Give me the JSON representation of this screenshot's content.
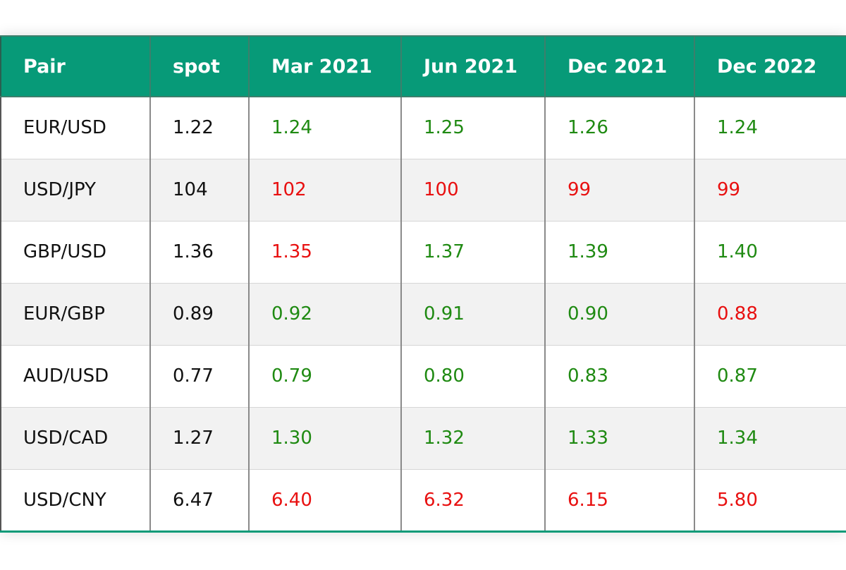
{
  "colors": {
    "header_bg": "#079a78",
    "header_text": "#ffffff",
    "up": "#1f8a12",
    "down": "#e81010",
    "row_alt": "#f2f2f2"
  },
  "chart_data": {
    "type": "table",
    "columns": [
      "Pair",
      "spot",
      "Mar 2021",
      "Jun 2021",
      "Dec 2021",
      "Dec 2022"
    ],
    "rows": [
      {
        "pair": "EUR/USD",
        "spot": "1.22",
        "forecasts": [
          {
            "value": "1.24",
            "direction": "up"
          },
          {
            "value": "1.25",
            "direction": "up"
          },
          {
            "value": "1.26",
            "direction": "up"
          },
          {
            "value": "1.24",
            "direction": "up"
          }
        ]
      },
      {
        "pair": "USD/JPY",
        "spot": "104",
        "forecasts": [
          {
            "value": "102",
            "direction": "down"
          },
          {
            "value": "100",
            "direction": "down"
          },
          {
            "value": "99",
            "direction": "down"
          },
          {
            "value": "99",
            "direction": "down"
          }
        ]
      },
      {
        "pair": "GBP/USD",
        "spot": "1.36",
        "forecasts": [
          {
            "value": "1.35",
            "direction": "down"
          },
          {
            "value": "1.37",
            "direction": "up"
          },
          {
            "value": "1.39",
            "direction": "up"
          },
          {
            "value": "1.40",
            "direction": "up"
          }
        ]
      },
      {
        "pair": "EUR/GBP",
        "spot": "0.89",
        "forecasts": [
          {
            "value": "0.92",
            "direction": "up"
          },
          {
            "value": "0.91",
            "direction": "up"
          },
          {
            "value": "0.90",
            "direction": "up"
          },
          {
            "value": "0.88",
            "direction": "down"
          }
        ]
      },
      {
        "pair": "AUD/USD",
        "spot": "0.77",
        "forecasts": [
          {
            "value": "0.79",
            "direction": "up"
          },
          {
            "value": "0.80",
            "direction": "up"
          },
          {
            "value": "0.83",
            "direction": "up"
          },
          {
            "value": "0.87",
            "direction": "up"
          }
        ]
      },
      {
        "pair": "USD/CAD",
        "spot": "1.27",
        "forecasts": [
          {
            "value": "1.30",
            "direction": "up"
          },
          {
            "value": "1.32",
            "direction": "up"
          },
          {
            "value": "1.33",
            "direction": "up"
          },
          {
            "value": "1.34",
            "direction": "up"
          }
        ]
      },
      {
        "pair": "USD/CNY",
        "spot": "6.47",
        "forecasts": [
          {
            "value": "6.40",
            "direction": "down"
          },
          {
            "value": "6.32",
            "direction": "down"
          },
          {
            "value": "6.15",
            "direction": "down"
          },
          {
            "value": "5.80",
            "direction": "down"
          }
        ]
      }
    ]
  }
}
